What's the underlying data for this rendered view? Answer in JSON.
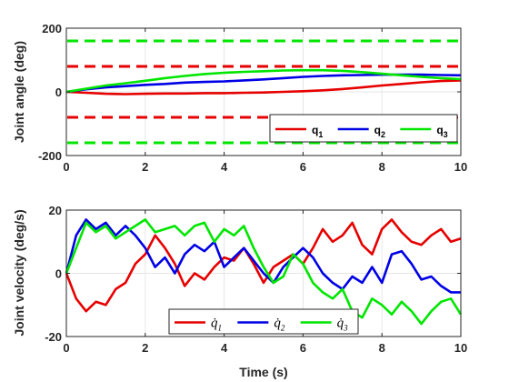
{
  "colors": {
    "q1": "#e60000",
    "q2": "#0000e6",
    "q3": "#00e600",
    "axis": "#262626",
    "grid": "#e6e6e6"
  },
  "chart_data": [
    {
      "type": "line",
      "xlabel": "",
      "ylabel": "Joint angle (deg)",
      "xlim": [
        0,
        10
      ],
      "ylim": [
        -200,
        200
      ],
      "xticks": [
        "0",
        "2",
        "4",
        "6",
        "8",
        "10"
      ],
      "yticks": [
        "-200",
        "0",
        "200"
      ],
      "grid": true,
      "legend": {
        "placement": "bottom-right",
        "orientation": "horizontal"
      },
      "limits": [
        {
          "y": 80,
          "color": "#e60000",
          "style": "dashed"
        },
        {
          "y": -80,
          "color": "#e60000",
          "style": "dashed"
        },
        {
          "y": 160,
          "color": "#00e600",
          "style": "dashed"
        },
        {
          "y": -160,
          "color": "#00e600",
          "style": "dashed"
        }
      ],
      "x": [
        0,
        0.5,
        1,
        1.5,
        2,
        2.5,
        3,
        3.5,
        4,
        4.5,
        5,
        5.5,
        6,
        6.5,
        7,
        7.5,
        8,
        8.5,
        9,
        9.5,
        10
      ],
      "series": [
        {
          "name": "q",
          "sub": "1",
          "color": "#e60000",
          "values": [
            0,
            -3,
            -6,
            -7,
            -6,
            -5,
            -5,
            -4,
            -4,
            -3,
            -2,
            0,
            2,
            5,
            9,
            14,
            20,
            25,
            30,
            34,
            36
          ]
        },
        {
          "name": "q",
          "sub": "2",
          "color": "#0000e6",
          "values": [
            0,
            8,
            14,
            18,
            22,
            25,
            29,
            31,
            33,
            36,
            39,
            43,
            47,
            50,
            52,
            53,
            54,
            54,
            54,
            53,
            52
          ]
        },
        {
          "name": "q",
          "sub": "3",
          "color": "#00e600",
          "values": [
            0,
            10,
            20,
            27,
            35,
            43,
            50,
            56,
            60,
            63,
            65,
            67,
            68,
            68,
            66,
            62,
            57,
            52,
            47,
            43,
            40
          ]
        }
      ]
    },
    {
      "type": "line",
      "xlabel": "Time (s)",
      "ylabel": "Joint velocity (deg/s)",
      "xlim": [
        0,
        10
      ],
      "ylim": [
        -20,
        20
      ],
      "xticks": [
        "0",
        "2",
        "4",
        "6",
        "8",
        "10"
      ],
      "yticks": [
        "-20",
        "0",
        "20"
      ],
      "grid": true,
      "legend": {
        "placement": "bottom-center",
        "orientation": "horizontal"
      },
      "x": [
        0,
        0.25,
        0.5,
        0.75,
        1,
        1.25,
        1.5,
        1.75,
        2,
        2.25,
        2.5,
        2.75,
        3,
        3.25,
        3.5,
        3.75,
        4,
        4.25,
        4.5,
        4.75,
        5,
        5.25,
        5.5,
        5.75,
        6,
        6.25,
        6.5,
        6.75,
        7,
        7.25,
        7.5,
        7.75,
        8,
        8.25,
        8.5,
        8.75,
        9,
        9.25,
        9.5,
        9.75,
        10
      ],
      "series": [
        {
          "name": "q̇",
          "sub": "1",
          "color": "#e60000",
          "values": [
            0,
            -8,
            -12,
            -9,
            -10,
            -5,
            -3,
            3,
            6,
            12,
            8,
            3,
            -4,
            0,
            -2,
            2,
            5,
            4,
            8,
            3,
            -3,
            2,
            4,
            6,
            3,
            8,
            14,
            10,
            12,
            16,
            9,
            6,
            14,
            17,
            13,
            10,
            9,
            12,
            14,
            10,
            11
          ]
        },
        {
          "name": "q̇",
          "sub": "2",
          "color": "#0000e6",
          "values": [
            0,
            12,
            17,
            14,
            16,
            12,
            15,
            12,
            8,
            2,
            5,
            0,
            6,
            9,
            7,
            10,
            2,
            5,
            8,
            4,
            0,
            -3,
            2,
            5,
            8,
            5,
            0,
            -3,
            -5,
            -1,
            -3,
            2,
            -3,
            6,
            7,
            3,
            -2,
            -1,
            -4,
            -6,
            -6
          ]
        },
        {
          "name": "q̇",
          "sub": "3",
          "color": "#00e600",
          "values": [
            0,
            8,
            16,
            13,
            15,
            11,
            13,
            15,
            17,
            13,
            14,
            15,
            12,
            15,
            16,
            10,
            14,
            12,
            15,
            8,
            2,
            -3,
            -1,
            6,
            3,
            -3,
            -6,
            -8,
            -5,
            -12,
            -14,
            -8,
            -10,
            -13,
            -9,
            -12,
            -16,
            -12,
            -9,
            -8,
            -13
          ]
        }
      ]
    }
  ]
}
